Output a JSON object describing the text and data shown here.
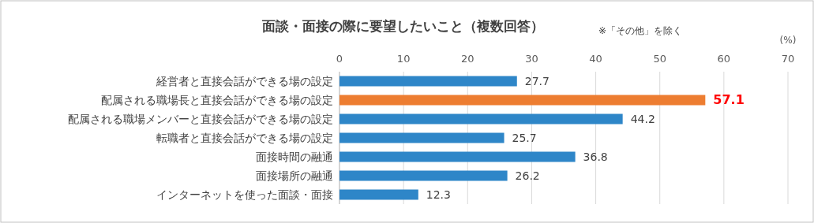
{
  "chart_data": {
    "type": "bar",
    "orientation": "horizontal",
    "title": "面談・面接の際に要望したいこと（複数回答）",
    "xlabel": "(%)",
    "annotations": [
      "※「その他」を除く"
    ],
    "categories": [
      "経営者と直接会話ができる場の設定",
      "配属される職場長と直接会話ができる場の設定",
      "配属される職場メンバーと直接会話ができる場の設定",
      "転職者と直接会話ができる場の設定",
      "面接時間の融通",
      "面接場所の融通",
      "インターネットを使った面談・面接"
    ],
    "values": [
      27.7,
      57.1,
      44.2,
      25.7,
      36.8,
      26.2,
      12.3
    ],
    "colors": [
      "#2e86c8",
      "#ed7d31",
      "#2e86c8",
      "#2e86c8",
      "#2e86c8",
      "#2e86c8",
      "#2e86c8"
    ],
    "xlim": [
      0,
      70
    ],
    "xticks": [
      0,
      10,
      20,
      30,
      40,
      50,
      60,
      70
    ],
    "grid": "x",
    "data_labels": true
  }
}
